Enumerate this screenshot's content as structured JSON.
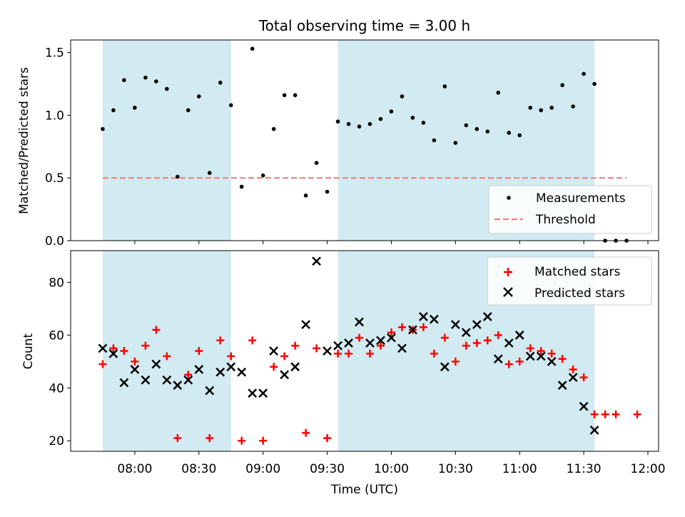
{
  "title": "Total observing time = 3.00 h",
  "colors": {
    "shade": "#add8e6",
    "measure": "#000000",
    "threshold": "#f08080",
    "matched": "#ff0000",
    "predicted": "#000000"
  },
  "chart_data": [
    {
      "type": "scatter",
      "ylabel": "Matched/Predicted stars",
      "ylim": [
        0,
        1.6
      ],
      "yticks": [
        0.0,
        0.5,
        1.0,
        1.5
      ],
      "ytick_labels": [
        "0.0",
        "0.5",
        "1.0",
        "1.5"
      ],
      "shaded_intervals": [
        [
          "07:45",
          "08:45"
        ],
        [
          "09:35",
          "11:35"
        ]
      ],
      "threshold": {
        "name": "Threshold",
        "value": 0.5,
        "x_start": "07:45",
        "x_end": "11:50",
        "style": "dashed"
      },
      "series": [
        {
          "name": "Measurements",
          "marker": "dot",
          "points": [
            [
              "07:45",
              0.89
            ],
            [
              "07:50",
              1.04
            ],
            [
              "07:55",
              1.28
            ],
            [
              "08:00",
              1.06
            ],
            [
              "08:05",
              1.3
            ],
            [
              "08:10",
              1.27
            ],
            [
              "08:15",
              1.21
            ],
            [
              "08:20",
              0.51
            ],
            [
              "08:25",
              1.04
            ],
            [
              "08:30",
              1.15
            ],
            [
              "08:35",
              0.54
            ],
            [
              "08:40",
              1.26
            ],
            [
              "08:45",
              1.08
            ],
            [
              "08:50",
              0.43
            ],
            [
              "08:55",
              1.53
            ],
            [
              "09:00",
              0.52
            ],
            [
              "09:05",
              0.89
            ],
            [
              "09:10",
              1.16
            ],
            [
              "09:15",
              1.16
            ],
            [
              "09:20",
              0.36
            ],
            [
              "09:25",
              0.62
            ],
            [
              "09:30",
              0.39
            ],
            [
              "09:35",
              0.95
            ],
            [
              "09:40",
              0.93
            ],
            [
              "09:45",
              0.91
            ],
            [
              "09:50",
              0.93
            ],
            [
              "09:55",
              0.97
            ],
            [
              "10:00",
              1.03
            ],
            [
              "10:05",
              1.15
            ],
            [
              "10:10",
              0.98
            ],
            [
              "10:15",
              0.94
            ],
            [
              "10:20",
              0.8
            ],
            [
              "10:25",
              1.23
            ],
            [
              "10:30",
              0.78
            ],
            [
              "10:35",
              0.92
            ],
            [
              "10:40",
              0.89
            ],
            [
              "10:45",
              0.87
            ],
            [
              "10:50",
              1.18
            ],
            [
              "10:55",
              0.86
            ],
            [
              "11:00",
              0.84
            ],
            [
              "11:05",
              1.06
            ],
            [
              "11:10",
              1.04
            ],
            [
              "11:15",
              1.06
            ],
            [
              "11:20",
              1.24
            ],
            [
              "11:25",
              1.07
            ],
            [
              "11:30",
              1.33
            ],
            [
              "11:35",
              1.25
            ],
            [
              "11:40",
              0.0
            ],
            [
              "11:45",
              0.0
            ],
            [
              "11:50",
              0.0
            ]
          ]
        }
      ],
      "legend": {
        "position": "lower-right",
        "entries": [
          "Measurements",
          "Threshold"
        ]
      }
    },
    {
      "type": "scatter",
      "xlabel": "Time (UTC)",
      "ylabel": "Count",
      "ylim": [
        16,
        92
      ],
      "yticks": [
        20,
        40,
        60,
        80
      ],
      "ytick_labels": [
        "20",
        "40",
        "60",
        "80"
      ],
      "xlim": [
        "07:30",
        "12:05"
      ],
      "xticks": [
        "08:00",
        "08:30",
        "09:00",
        "09:30",
        "10:00",
        "10:30",
        "11:00",
        "11:30",
        "12:00"
      ],
      "xtick_labels": [
        "08:00",
        "08:30",
        "09:00",
        "09:30",
        "10:00",
        "10:30",
        "11:00",
        "11:30",
        "12:00"
      ],
      "shaded_intervals": [
        [
          "07:45",
          "08:45"
        ],
        [
          "09:35",
          "11:35"
        ]
      ],
      "series": [
        {
          "name": "Matched stars",
          "marker": "plus",
          "points": [
            [
              "07:45",
              49
            ],
            [
              "07:50",
              55
            ],
            [
              "07:55",
              54
            ],
            [
              "08:00",
              50
            ],
            [
              "08:05",
              56
            ],
            [
              "08:10",
              62
            ],
            [
              "08:15",
              52
            ],
            [
              "08:20",
              21
            ],
            [
              "08:25",
              45
            ],
            [
              "08:30",
              54
            ],
            [
              "08:35",
              21
            ],
            [
              "08:40",
              58
            ],
            [
              "08:45",
              52
            ],
            [
              "08:50",
              20
            ],
            [
              "08:55",
              58
            ],
            [
              "09:00",
              20
            ],
            [
              "09:05",
              48
            ],
            [
              "09:10",
              52
            ],
            [
              "09:15",
              56
            ],
            [
              "09:20",
              23
            ],
            [
              "09:25",
              55
            ],
            [
              "09:30",
              21
            ],
            [
              "09:35",
              53
            ],
            [
              "09:40",
              53
            ],
            [
              "09:45",
              59
            ],
            [
              "09:50",
              53
            ],
            [
              "09:55",
              56
            ],
            [
              "10:00",
              61
            ],
            [
              "10:05",
              63
            ],
            [
              "10:10",
              62
            ],
            [
              "10:15",
              63
            ],
            [
              "10:20",
              53
            ],
            [
              "10:25",
              59
            ],
            [
              "10:30",
              50
            ],
            [
              "10:35",
              56
            ],
            [
              "10:40",
              57
            ],
            [
              "10:45",
              58
            ],
            [
              "10:50",
              60
            ],
            [
              "10:55",
              49
            ],
            [
              "11:00",
              50
            ],
            [
              "11:05",
              55
            ],
            [
              "11:10",
              54
            ],
            [
              "11:15",
              53
            ],
            [
              "11:20",
              51
            ],
            [
              "11:25",
              47
            ],
            [
              "11:30",
              44
            ],
            [
              "11:35",
              30
            ],
            [
              "11:40",
              30
            ],
            [
              "11:45",
              30
            ],
            [
              "11:55",
              30
            ]
          ]
        },
        {
          "name": "Predicted stars",
          "marker": "x",
          "points": [
            [
              "07:45",
              55
            ],
            [
              "07:50",
              53
            ],
            [
              "07:55",
              42
            ],
            [
              "08:00",
              47
            ],
            [
              "08:05",
              43
            ],
            [
              "08:10",
              49
            ],
            [
              "08:15",
              43
            ],
            [
              "08:20",
              41
            ],
            [
              "08:25",
              43
            ],
            [
              "08:30",
              47
            ],
            [
              "08:35",
              39
            ],
            [
              "08:40",
              46
            ],
            [
              "08:45",
              48
            ],
            [
              "08:50",
              46
            ],
            [
              "08:55",
              38
            ],
            [
              "09:00",
              38
            ],
            [
              "09:05",
              54
            ],
            [
              "09:10",
              45
            ],
            [
              "09:15",
              48
            ],
            [
              "09:20",
              64
            ],
            [
              "09:25",
              88
            ],
            [
              "09:30",
              54
            ],
            [
              "09:35",
              56
            ],
            [
              "09:40",
              57
            ],
            [
              "09:45",
              65
            ],
            [
              "09:50",
              57
            ],
            [
              "09:55",
              58
            ],
            [
              "10:00",
              59
            ],
            [
              "10:05",
              55
            ],
            [
              "10:10",
              62
            ],
            [
              "10:15",
              67
            ],
            [
              "10:20",
              66
            ],
            [
              "10:25",
              48
            ],
            [
              "10:30",
              64
            ],
            [
              "10:35",
              61
            ],
            [
              "10:40",
              64
            ],
            [
              "10:45",
              67
            ],
            [
              "10:50",
              51
            ],
            [
              "10:55",
              57
            ],
            [
              "11:00",
              60
            ],
            [
              "11:05",
              52
            ],
            [
              "11:10",
              52
            ],
            [
              "11:15",
              50
            ],
            [
              "11:20",
              41
            ],
            [
              "11:25",
              44
            ],
            [
              "11:30",
              33
            ],
            [
              "11:35",
              24
            ]
          ]
        }
      ],
      "legend": {
        "position": "top-right",
        "entries": [
          "Matched stars",
          "Predicted stars"
        ]
      }
    }
  ]
}
